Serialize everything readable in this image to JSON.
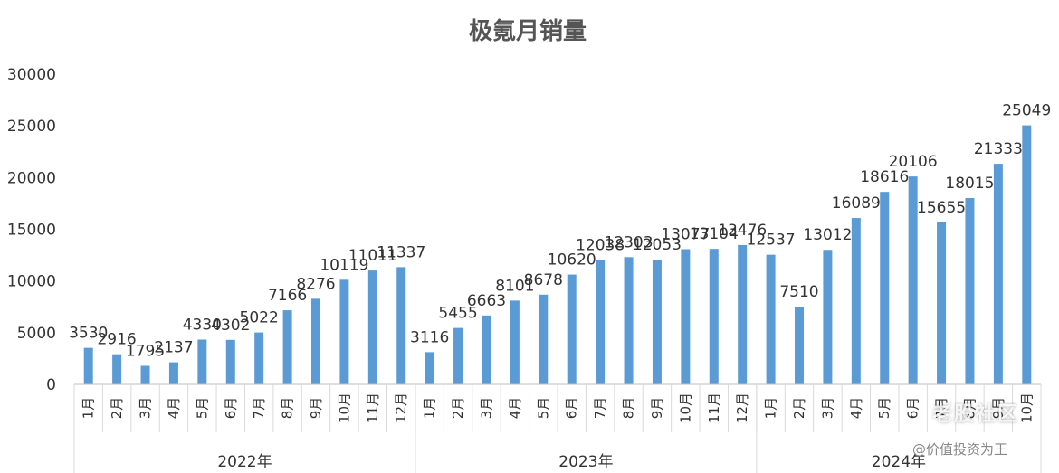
{
  "chart_data": {
    "type": "bar",
    "title": "极氪月销量",
    "ylim": [
      0,
      30000
    ],
    "yticks": [
      0,
      5000,
      10000,
      15000,
      20000,
      25000,
      30000
    ],
    "grid": false,
    "legend": "none",
    "bar_color": "#5b9bd5",
    "groups": [
      {
        "label": "2022年",
        "months": [
          "1月",
          "2月",
          "3月",
          "4月",
          "5月",
          "6月",
          "7月",
          "8月",
          "9月",
          "10月",
          "11月",
          "12月"
        ],
        "values": [
          3530,
          2916,
          1795,
          2137,
          4330,
          4302,
          5022,
          7166,
          8276,
          10119,
          11011,
          11337
        ]
      },
      {
        "label": "2023年",
        "months": [
          "1月",
          "2月",
          "3月",
          "4月",
          "5月",
          "6月",
          "7月",
          "8月",
          "9月",
          "10月",
          "11月",
          "12月"
        ],
        "values": [
          3116,
          5455,
          6663,
          8101,
          8678,
          10620,
          12038,
          12303,
          12053,
          13077,
          13104,
          13476
        ]
      },
      {
        "label": "2024年",
        "months": [
          "1月",
          "2月",
          "3月",
          "4月",
          "5月",
          "6月",
          "7月",
          "8月",
          "9月",
          "10月"
        ],
        "values": [
          12537,
          7510,
          13012,
          16089,
          18616,
          20106,
          15655,
          18015,
          21333,
          25049
        ]
      }
    ]
  },
  "watermark": {
    "text1": "老股社区",
    "text2": "@价值投资为王"
  }
}
